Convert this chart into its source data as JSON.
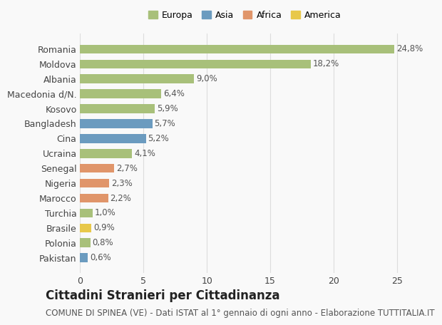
{
  "countries": [
    "Romania",
    "Moldova",
    "Albania",
    "Macedonia d/N.",
    "Kosovo",
    "Bangladesh",
    "Cina",
    "Ucraina",
    "Senegal",
    "Nigeria",
    "Marocco",
    "Turchia",
    "Brasile",
    "Polonia",
    "Pakistan"
  ],
  "values": [
    24.8,
    18.2,
    9.0,
    6.4,
    5.9,
    5.7,
    5.2,
    4.1,
    2.7,
    2.3,
    2.2,
    1.0,
    0.9,
    0.8,
    0.6
  ],
  "labels": [
    "24,8%",
    "18,2%",
    "9,0%",
    "6,4%",
    "5,9%",
    "5,7%",
    "5,2%",
    "4,1%",
    "2,7%",
    "2,3%",
    "2,2%",
    "1,0%",
    "0,9%",
    "0,8%",
    "0,6%"
  ],
  "categories": [
    "Europa",
    "Europa",
    "Europa",
    "Europa",
    "Europa",
    "Asia",
    "Asia",
    "Europa",
    "Africa",
    "Africa",
    "Africa",
    "Europa",
    "America",
    "Europa",
    "Asia"
  ],
  "colors": {
    "Europa": "#a8c07a",
    "Asia": "#6b9bbf",
    "Africa": "#e0956a",
    "America": "#e8c84a"
  },
  "legend_order": [
    "Europa",
    "Asia",
    "Africa",
    "America"
  ],
  "title": "Cittadini Stranieri per Cittadinanza",
  "subtitle": "COMUNE DI SPINEA (VE) - Dati ISTAT al 1° gennaio di ogni anno - Elaborazione TUTTITALIA.IT",
  "xlim": [
    0,
    26
  ],
  "xticks": [
    0,
    5,
    10,
    15,
    20,
    25
  ],
  "background_color": "#f9f9f9",
  "bar_height": 0.6,
  "grid_color": "#dddddd",
  "title_fontsize": 12,
  "subtitle_fontsize": 8.5,
  "tick_fontsize": 9,
  "label_fontsize": 8.5,
  "legend_fontsize": 9
}
